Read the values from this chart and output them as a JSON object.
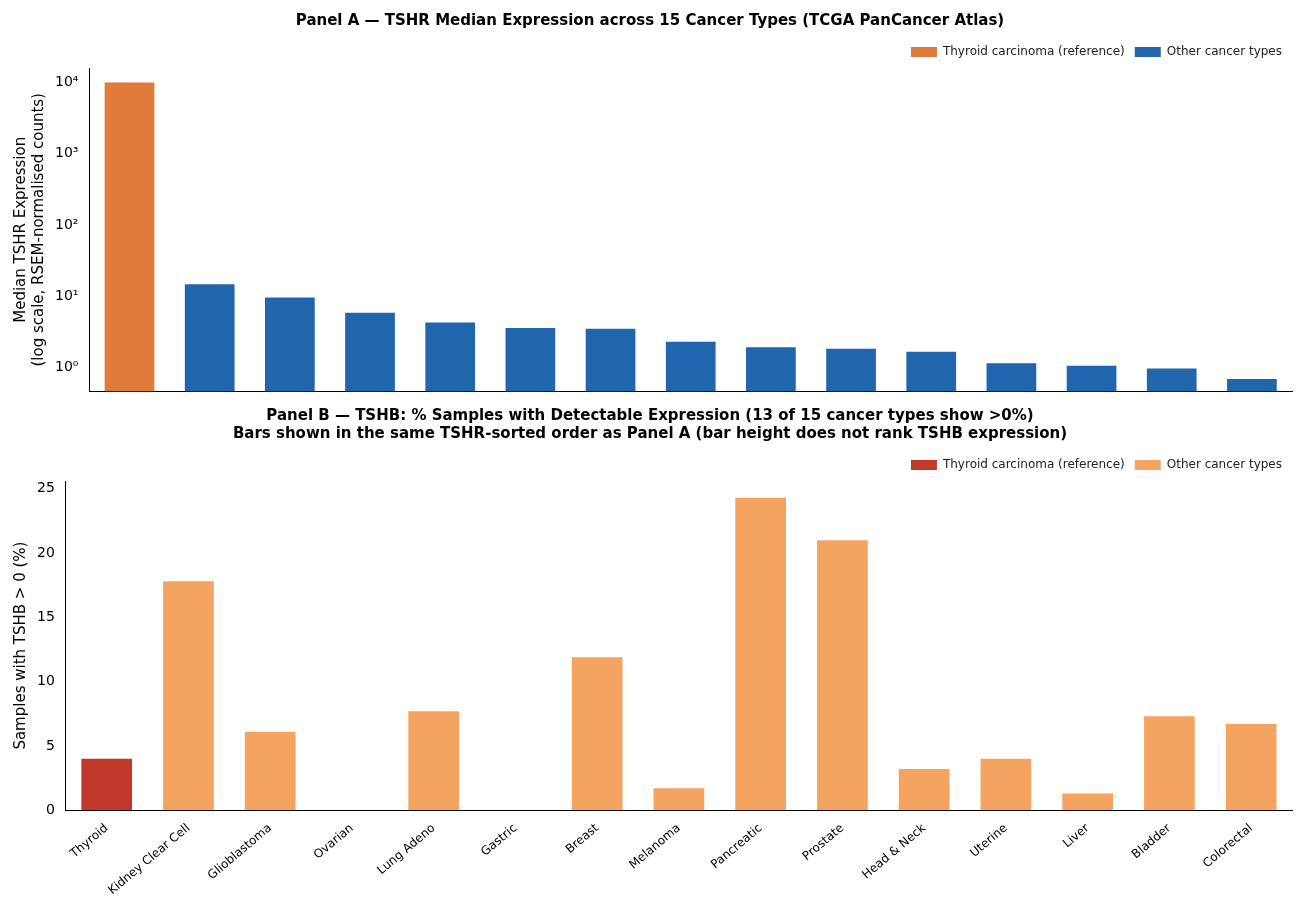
{
  "chart_data": [
    {
      "type": "bar",
      "title": "Panel A — TSHR Median Expression across 15 Cancer Types (TCGA PanCancer Atlas)",
      "ylabel": "Median TSHR Expression\n(log scale, RSEM-normalised counts)",
      "categories": [
        null,
        null,
        null,
        null,
        null,
        null,
        null,
        null,
        null,
        null,
        null,
        null,
        null,
        null,
        null
      ],
      "series": [
        {
          "name": "Thyroid carcinoma (reference)",
          "color": "#e07b39",
          "values": [
            10000,
            null,
            null,
            null,
            null,
            null,
            null,
            null,
            null,
            null,
            null,
            null,
            null,
            null,
            null
          ]
        },
        {
          "name": "Other cancer types",
          "color": "#2166ac",
          "values": [
            null,
            14.8,
            9.6,
            5.9,
            4.3,
            3.6,
            3.5,
            2.3,
            1.93,
            1.83,
            1.67,
            1.15,
            1.06,
            0.97,
            0.69
          ]
        }
      ],
      "log": "y",
      "ylim": [
        0.46,
        16000
      ],
      "yticks": [
        {
          "value": 1,
          "label": "10⁰"
        },
        {
          "value": 10,
          "label": "10¹"
        },
        {
          "value": 100,
          "label": "10²"
        },
        {
          "value": 1000,
          "label": "10³"
        },
        {
          "value": 10000,
          "label": "10⁴"
        }
      ],
      "tick_labels": "y",
      "legend": "top right"
    },
    {
      "type": "bar",
      "title": "Panel B — TSHB: % Samples with Detectable Expression (13 of 15 cancer types show >0%)",
      "subtitle": "Bars shown in the same TSHR-sorted order as Panel A (bar height does not rank TSHB expression)",
      "ylabel": "Samples with TSHB > 0 (%)",
      "categories": [
        "Thyroid",
        "Kidney Clear Cell",
        "Glioblastoma",
        "Ovarian",
        "Lung Adeno",
        "Gastric",
        "Breast",
        "Melanoma",
        "Pancreatic",
        "Prostate",
        "Head & Neck",
        "Uterine",
        "Liver",
        "Bladder",
        "Colorectal"
      ],
      "series": [
        {
          "name": "Thyroid carcinoma (reference)",
          "color": "#c0392b",
          "values": [
            4.0,
            null,
            null,
            null,
            null,
            null,
            null,
            null,
            null,
            null,
            null,
            null,
            null,
            null,
            null
          ]
        },
        {
          "name": "Other cancer types",
          "color": "#f4a460",
          "values": [
            null,
            17.8,
            6.1,
            0,
            7.7,
            0,
            11.9,
            1.7,
            24.3,
            21.0,
            3.2,
            4.0,
            1.3,
            7.3,
            6.7
          ]
        }
      ],
      "ylim": [
        0,
        25.6
      ],
      "yticks": [
        0,
        5,
        10,
        15,
        20,
        25
      ],
      "legend": "top right"
    }
  ]
}
